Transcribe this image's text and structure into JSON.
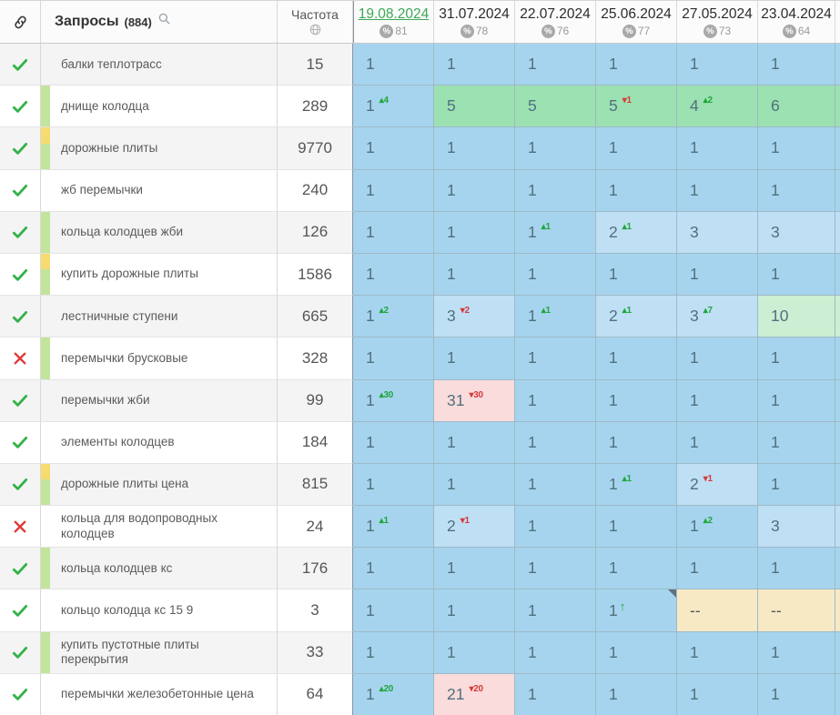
{
  "header": {
    "queries_label": "Запросы",
    "queries_count": "(884)",
    "frequency_label": "Частота",
    "percent_symbol": "%",
    "dates": [
      {
        "label": "19.08.2024",
        "percent": "81",
        "active": true
      },
      {
        "label": "31.07.2024",
        "percent": "78",
        "active": false
      },
      {
        "label": "22.07.2024",
        "percent": "76",
        "active": false
      },
      {
        "label": "25.06.2024",
        "percent": "77",
        "active": false
      },
      {
        "label": "27.05.2024",
        "percent": "73",
        "active": false
      },
      {
        "label": "23.04.2024",
        "percent": "64",
        "active": false
      }
    ]
  },
  "icons": {
    "link": "chain-link",
    "search": "magnifier",
    "frequency": "globe",
    "status_ok": "green-check",
    "status_fail": "red-cross",
    "delta_up_glyph": "▴",
    "delta_down_glyph": "▾",
    "new_entry_glyph": "↑",
    "missing_value": "--"
  },
  "colors": {
    "active_date": "#3ea757",
    "position_blue": "#a6d4ee",
    "position_light_blue": "#bfdff4",
    "position_green": "#9be1b1",
    "position_light_green": "#cceed2",
    "position_pink": "#fadcdc",
    "missing_tan": "#f6e9c4",
    "bar_green": "#c3e49c",
    "bar_yellow": "#f6db70",
    "delta_up": "#1fa73d",
    "delta_down": "#d63a3a"
  },
  "rows": [
    {
      "status": "ok",
      "query": "балки теплотрасс",
      "bar": [],
      "frequency": "15",
      "cells": [
        {
          "v": "1",
          "bg": "b1"
        },
        {
          "v": "1",
          "bg": "b1"
        },
        {
          "v": "1",
          "bg": "b1"
        },
        {
          "v": "1",
          "bg": "b1"
        },
        {
          "v": "1",
          "bg": "b1"
        },
        {
          "v": "1",
          "bg": "b1"
        }
      ]
    },
    {
      "status": "ok",
      "query": "днище колодца",
      "bar": [
        "green"
      ],
      "frequency": "289",
      "cells": [
        {
          "v": "1",
          "bg": "b1",
          "d": "4",
          "dir": "up"
        },
        {
          "v": "5",
          "bg": "g1"
        },
        {
          "v": "5",
          "bg": "g1"
        },
        {
          "v": "5",
          "bg": "g1",
          "d": "1",
          "dir": "down"
        },
        {
          "v": "4",
          "bg": "g1",
          "d": "2",
          "dir": "up"
        },
        {
          "v": "6",
          "bg": "g1"
        }
      ]
    },
    {
      "status": "ok",
      "query": "дорожные плиты",
      "bar": [
        "yellow",
        "green"
      ],
      "frequency": "9770",
      "cells": [
        {
          "v": "1",
          "bg": "b1"
        },
        {
          "v": "1",
          "bg": "b1"
        },
        {
          "v": "1",
          "bg": "b1"
        },
        {
          "v": "1",
          "bg": "b1"
        },
        {
          "v": "1",
          "bg": "b1"
        },
        {
          "v": "1",
          "bg": "b1"
        }
      ]
    },
    {
      "status": "ok",
      "query": "жб перемычки",
      "bar": [],
      "frequency": "240",
      "cells": [
        {
          "v": "1",
          "bg": "b1"
        },
        {
          "v": "1",
          "bg": "b1"
        },
        {
          "v": "1",
          "bg": "b1"
        },
        {
          "v": "1",
          "bg": "b1"
        },
        {
          "v": "1",
          "bg": "b1"
        },
        {
          "v": "1",
          "bg": "b1"
        }
      ]
    },
    {
      "status": "ok",
      "query": "кольца колодцев жби",
      "bar": [
        "green"
      ],
      "frequency": "126",
      "cells": [
        {
          "v": "1",
          "bg": "b1"
        },
        {
          "v": "1",
          "bg": "b1"
        },
        {
          "v": "1",
          "bg": "b1",
          "d": "1",
          "dir": "up"
        },
        {
          "v": "2",
          "bg": "b2",
          "d": "1",
          "dir": "up"
        },
        {
          "v": "3",
          "bg": "b2"
        },
        {
          "v": "3",
          "bg": "b2"
        }
      ]
    },
    {
      "status": "ok",
      "query": "купить дорожные плиты",
      "bar": [
        "yellow",
        "green"
      ],
      "frequency": "1586",
      "cells": [
        {
          "v": "1",
          "bg": "b1"
        },
        {
          "v": "1",
          "bg": "b1"
        },
        {
          "v": "1",
          "bg": "b1"
        },
        {
          "v": "1",
          "bg": "b1"
        },
        {
          "v": "1",
          "bg": "b1"
        },
        {
          "v": "1",
          "bg": "b1"
        }
      ]
    },
    {
      "status": "ok",
      "query": "лестничные ступени",
      "bar": [],
      "frequency": "665",
      "cells": [
        {
          "v": "1",
          "bg": "b1",
          "d": "2",
          "dir": "up"
        },
        {
          "v": "3",
          "bg": "b2",
          "d": "2",
          "dir": "down"
        },
        {
          "v": "1",
          "bg": "b1",
          "d": "1",
          "dir": "up"
        },
        {
          "v": "2",
          "bg": "b2",
          "d": "1",
          "dir": "up"
        },
        {
          "v": "3",
          "bg": "b2",
          "d": "7",
          "dir": "up"
        },
        {
          "v": "10",
          "bg": "g2"
        }
      ]
    },
    {
      "status": "fail",
      "query": "перемычки брусковые",
      "bar": [
        "green"
      ],
      "frequency": "328",
      "cells": [
        {
          "v": "1",
          "bg": "b1"
        },
        {
          "v": "1",
          "bg": "b1"
        },
        {
          "v": "1",
          "bg": "b1"
        },
        {
          "v": "1",
          "bg": "b1"
        },
        {
          "v": "1",
          "bg": "b1"
        },
        {
          "v": "1",
          "bg": "b1"
        }
      ]
    },
    {
      "status": "ok",
      "query": "перемычки жби",
      "bar": [],
      "frequency": "99",
      "cells": [
        {
          "v": "1",
          "bg": "b1",
          "d": "30",
          "dir": "up"
        },
        {
          "v": "31",
          "bg": "pink",
          "d": "30",
          "dir": "down"
        },
        {
          "v": "1",
          "bg": "b1"
        },
        {
          "v": "1",
          "bg": "b1"
        },
        {
          "v": "1",
          "bg": "b1"
        },
        {
          "v": "1",
          "bg": "b1"
        }
      ]
    },
    {
      "status": "ok",
      "query": "элементы колодцев",
      "bar": [],
      "frequency": "184",
      "cells": [
        {
          "v": "1",
          "bg": "b1"
        },
        {
          "v": "1",
          "bg": "b1"
        },
        {
          "v": "1",
          "bg": "b1"
        },
        {
          "v": "1",
          "bg": "b1"
        },
        {
          "v": "1",
          "bg": "b1"
        },
        {
          "v": "1",
          "bg": "b1"
        }
      ]
    },
    {
      "status": "ok",
      "query": "дорожные плиты цена",
      "bar": [
        "yellow",
        "green"
      ],
      "frequency": "815",
      "cells": [
        {
          "v": "1",
          "bg": "b1"
        },
        {
          "v": "1",
          "bg": "b1"
        },
        {
          "v": "1",
          "bg": "b1"
        },
        {
          "v": "1",
          "bg": "b1",
          "d": "1",
          "dir": "up"
        },
        {
          "v": "2",
          "bg": "b2",
          "d": "1",
          "dir": "down"
        },
        {
          "v": "1",
          "bg": "b1"
        }
      ]
    },
    {
      "status": "fail",
      "query": "кольца для водопроводных колодцев",
      "bar": [],
      "frequency": "24",
      "cells": [
        {
          "v": "1",
          "bg": "b1",
          "d": "1",
          "dir": "up"
        },
        {
          "v": "2",
          "bg": "b2",
          "d": "1",
          "dir": "down"
        },
        {
          "v": "1",
          "bg": "b1"
        },
        {
          "v": "1",
          "bg": "b1"
        },
        {
          "v": "1",
          "bg": "b1",
          "d": "2",
          "dir": "up"
        },
        {
          "v": "3",
          "bg": "b2"
        }
      ]
    },
    {
      "status": "ok",
      "query": "кольца колодцев кс",
      "bar": [
        "green"
      ],
      "frequency": "176",
      "cells": [
        {
          "v": "1",
          "bg": "b1"
        },
        {
          "v": "1",
          "bg": "b1"
        },
        {
          "v": "1",
          "bg": "b1"
        },
        {
          "v": "1",
          "bg": "b1"
        },
        {
          "v": "1",
          "bg": "b1"
        },
        {
          "v": "1",
          "bg": "b1"
        }
      ]
    },
    {
      "status": "ok",
      "query": "кольцо колодца кс 15 9",
      "bar": [],
      "frequency": "3",
      "cells": [
        {
          "v": "1",
          "bg": "b1"
        },
        {
          "v": "1",
          "bg": "b1"
        },
        {
          "v": "1",
          "bg": "b1"
        },
        {
          "v": "1",
          "bg": "b1",
          "dir": "new",
          "mark": true
        },
        {
          "v": "--",
          "bg": "tan"
        },
        {
          "v": "--",
          "bg": "tan"
        }
      ]
    },
    {
      "status": "ok",
      "query": "купить пустотные плиты перекрытия",
      "bar": [
        "green"
      ],
      "frequency": "33",
      "cells": [
        {
          "v": "1",
          "bg": "b1"
        },
        {
          "v": "1",
          "bg": "b1"
        },
        {
          "v": "1",
          "bg": "b1"
        },
        {
          "v": "1",
          "bg": "b1"
        },
        {
          "v": "1",
          "bg": "b1"
        },
        {
          "v": "1",
          "bg": "b1"
        }
      ]
    },
    {
      "status": "ok",
      "query": "перемычки железобетонные цена",
      "bar": [],
      "frequency": "64",
      "cells": [
        {
          "v": "1",
          "bg": "b1",
          "d": "20",
          "dir": "up"
        },
        {
          "v": "21",
          "bg": "pink",
          "d": "20",
          "dir": "down"
        },
        {
          "v": "1",
          "bg": "b1"
        },
        {
          "v": "1",
          "bg": "b1"
        },
        {
          "v": "1",
          "bg": "b1"
        },
        {
          "v": "1",
          "bg": "b1"
        }
      ]
    }
  ]
}
